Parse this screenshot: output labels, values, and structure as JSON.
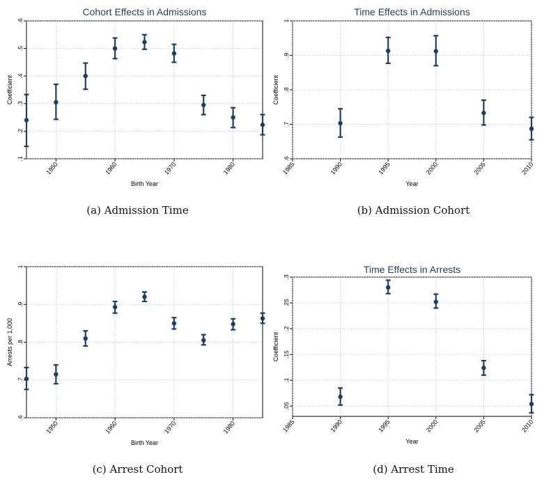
{
  "colors": {
    "marker": "#1f3f5f",
    "title": "#1f3f5f",
    "grid": "#bdbdbd",
    "axis": "#000000",
    "text": "#000000"
  },
  "chart_data": [
    {
      "type": "scatter",
      "error_bars": true,
      "title": "Cohort Effects in Admissions",
      "caption": "(a) Admission Time",
      "xlabel": "Birth Year",
      "ylabel": "Coefficient",
      "xlim": [
        1945,
        1985
      ],
      "ylim": [
        0.1,
        0.6
      ],
      "xticks": [
        1950,
        1960,
        1970,
        1980
      ],
      "xtick_labels": [
        "1950",
        "1960",
        "1970",
        "1980"
      ],
      "yticks": [
        0.1,
        0.2,
        0.3,
        0.4,
        0.5,
        0.6
      ],
      "ytick_labels": [
        ".1",
        ".2",
        ".3",
        ".4",
        ".5",
        ".6"
      ],
      "grid": true,
      "x": [
        1945,
        1950,
        1955,
        1960,
        1965,
        1970,
        1975,
        1980,
        1985
      ],
      "y": [
        0.24,
        0.305,
        0.4,
        0.5,
        0.523,
        0.482,
        0.295,
        0.25,
        0.223
      ],
      "y_low": [
        0.145,
        0.243,
        0.352,
        0.463,
        0.497,
        0.45,
        0.26,
        0.213,
        0.187
      ],
      "y_high": [
        0.333,
        0.37,
        0.447,
        0.538,
        0.55,
        0.515,
        0.33,
        0.285,
        0.26
      ]
    },
    {
      "type": "scatter",
      "error_bars": true,
      "title": "Time Effects in Admissions",
      "caption": "(b) Admission Cohort",
      "xlabel": "Year",
      "ylabel": "Coefficient",
      "xlim": [
        1985,
        2010
      ],
      "ylim": [
        0.6,
        1.0
      ],
      "xticks": [
        1985,
        1990,
        1995,
        2000,
        2005,
        2010
      ],
      "xtick_labels": [
        "1985",
        "1990",
        "1995",
        "2000",
        "2005",
        "2010"
      ],
      "yticks": [
        0.6,
        0.7,
        0.8,
        0.9,
        1.0
      ],
      "ytick_labels": [
        ".6",
        ".7",
        ".8",
        ".9",
        "1"
      ],
      "grid": true,
      "x": [
        1990,
        1995,
        2000,
        2005,
        2010
      ],
      "y": [
        0.703,
        0.913,
        0.912,
        0.733,
        0.687
      ],
      "y_low": [
        0.663,
        0.877,
        0.87,
        0.698,
        0.655
      ],
      "y_high": [
        0.745,
        0.952,
        0.957,
        0.77,
        0.72
      ]
    },
    {
      "type": "scatter",
      "error_bars": true,
      "title": "",
      "caption": "(c) Arrest Cohort",
      "xlabel": "Birth Year",
      "ylabel": "Arrests per 1,000",
      "xlim": [
        1945,
        1985
      ],
      "ylim": [
        0.6,
        1.0
      ],
      "xticks": [
        1950,
        1960,
        1970,
        1980
      ],
      "xtick_labels": [
        "1950",
        "1960",
        "1970",
        "1980"
      ],
      "yticks": [
        0.6,
        0.7,
        0.8,
        0.9,
        1.0
      ],
      "ytick_labels": [
        ".6",
        ".7",
        ".8",
        ".9",
        "1"
      ],
      "grid": true,
      "x": [
        1945,
        1950,
        1955,
        1960,
        1965,
        1970,
        1975,
        1980,
        1985
      ],
      "y": [
        0.703,
        0.715,
        0.81,
        0.893,
        0.92,
        0.85,
        0.805,
        0.848,
        0.863
      ],
      "y_low": [
        0.675,
        0.69,
        0.79,
        0.877,
        0.908,
        0.835,
        0.793,
        0.833,
        0.85
      ],
      "y_high": [
        0.733,
        0.74,
        0.83,
        0.908,
        0.933,
        0.865,
        0.82,
        0.862,
        0.877
      ]
    },
    {
      "type": "scatter",
      "error_bars": true,
      "title": "Time Effects in Arrests",
      "caption": "(d) Arrest Time",
      "xlabel": "Year",
      "ylabel": "Coefficient",
      "xlim": [
        1985,
        2010
      ],
      "ylim": [
        0.03,
        0.3
      ],
      "xticks": [
        1985,
        1990,
        1995,
        2000,
        2005,
        2010
      ],
      "xtick_labels": [
        "1985",
        "1990",
        "1995",
        "2000",
        "2005",
        "2010"
      ],
      "yticks": [
        0.05,
        0.1,
        0.15,
        0.2,
        0.25,
        0.3
      ],
      "ytick_labels": [
        ".05",
        ".1",
        ".15",
        ".2",
        ".25",
        ".3"
      ],
      "grid": true,
      "x": [
        1990,
        1995,
        2000,
        2005,
        2010
      ],
      "y": [
        0.068,
        0.28,
        0.252,
        0.124,
        0.054
      ],
      "y_low": [
        0.052,
        0.268,
        0.24,
        0.11,
        0.037
      ],
      "y_high": [
        0.085,
        0.294,
        0.267,
        0.138,
        0.072
      ]
    }
  ]
}
